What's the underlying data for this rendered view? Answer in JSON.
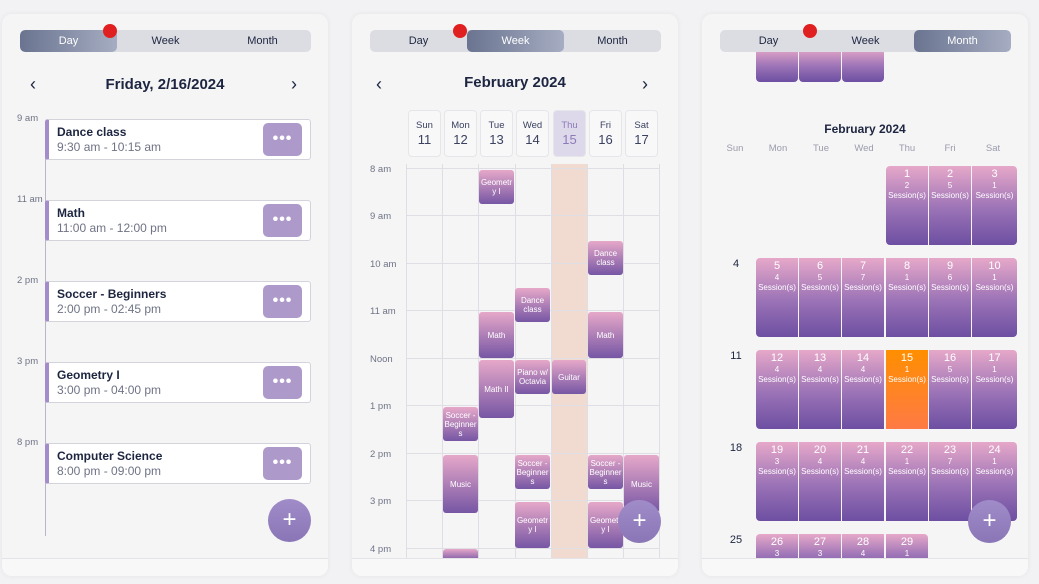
{
  "segments": [
    "Day",
    "Week",
    "Month"
  ],
  "day_view": {
    "title": "Friday, 2/16/2024",
    "prev": "‹",
    "next": "›",
    "time_labels": [
      "9 am",
      "11 am",
      "2 pm",
      "3 pm",
      "8 pm"
    ],
    "events": [
      {
        "title": "Dance class",
        "time": "9:30 am - 10:15 am"
      },
      {
        "title": "Math",
        "time": "11:00 am - 12:00 pm"
      },
      {
        "title": "Soccer - Beginners",
        "time": "2:00 pm - 02:45 pm"
      },
      {
        "title": "Geometry I",
        "time": "3:00 pm - 04:00 pm"
      },
      {
        "title": "Computer Science",
        "time": "8:00 pm - 09:00 pm"
      }
    ],
    "more": "•••",
    "add": "+"
  },
  "week_view": {
    "title": "February 2024",
    "prev": "‹",
    "next": "›",
    "days": [
      {
        "name": "Sun",
        "date": "11"
      },
      {
        "name": "Mon",
        "date": "12"
      },
      {
        "name": "Tue",
        "date": "13"
      },
      {
        "name": "Wed",
        "date": "14"
      },
      {
        "name": "Thu",
        "date": "15"
      },
      {
        "name": "Fri",
        "date": "16"
      },
      {
        "name": "Sat",
        "date": "17"
      }
    ],
    "hours": [
      "8 am",
      "9 am",
      "10 am",
      "11 am",
      "Noon",
      "1 pm",
      "2 pm",
      "3 pm",
      "4 pm"
    ],
    "blocks": [
      {
        "label": "Geometr y I"
      },
      {
        "label": "Dance class"
      },
      {
        "label": "Dance class"
      },
      {
        "label": "Math"
      },
      {
        "label": "Math"
      },
      {
        "label": "Piano w/ Octavia"
      },
      {
        "label": "Guitar"
      },
      {
        "label": "Math II"
      },
      {
        "label": "Soccer - Beginner s"
      },
      {
        "label": "Music"
      },
      {
        "label": "Soccer - Beginner s"
      },
      {
        "label": "Soccer - Beginner s"
      },
      {
        "label": "Music"
      },
      {
        "label": "Geometr y I"
      },
      {
        "label": "Geometr y I"
      }
    ],
    "add": "+"
  },
  "month_view": {
    "title": "February 2024",
    "dow": [
      "Sun",
      "Mon",
      "Tue",
      "Wed",
      "Thu",
      "Fri",
      "Sat"
    ],
    "weeks": [
      {
        "label": "",
        "days": [
          {
            "n": "1",
            "c": "2",
            "u": "Session(s)"
          },
          {
            "n": "2",
            "c": "5",
            "u": "Session(s)"
          },
          {
            "n": "3",
            "c": "1",
            "u": "Session(s)"
          }
        ]
      },
      {
        "label": "4",
        "days": [
          {
            "n": "5",
            "c": "4",
            "u": "Session(s)"
          },
          {
            "n": "6",
            "c": "5",
            "u": "Session(s)"
          },
          {
            "n": "7",
            "c": "7",
            "u": "Session(s)"
          },
          {
            "n": "8",
            "c": "1",
            "u": "Session(s)"
          },
          {
            "n": "9",
            "c": "6",
            "u": "Session(s)"
          },
          {
            "n": "10",
            "c": "1",
            "u": "Session(s)"
          }
        ]
      },
      {
        "label": "11",
        "days": [
          {
            "n": "12",
            "c": "4",
            "u": "Session(s)"
          },
          {
            "n": "13",
            "c": "4",
            "u": "Session(s)"
          },
          {
            "n": "14",
            "c": "4",
            "u": "Session(s)"
          },
          {
            "n": "15",
            "c": "1",
            "u": "Session(s)"
          },
          {
            "n": "16",
            "c": "5",
            "u": "Session(s)"
          },
          {
            "n": "17",
            "c": "1",
            "u": "Session(s)"
          }
        ]
      },
      {
        "label": "18",
        "days": [
          {
            "n": "19",
            "c": "3",
            "u": "Session(s)"
          },
          {
            "n": "20",
            "c": "4",
            "u": "Session(s)"
          },
          {
            "n": "21",
            "c": "4",
            "u": "Session(s)"
          },
          {
            "n": "22",
            "c": "1",
            "u": "Session(s)"
          },
          {
            "n": "23",
            "c": "7",
            "u": "Session(s)"
          },
          {
            "n": "24",
            "c": "1",
            "u": "Session(s)"
          }
        ]
      },
      {
        "label": "25",
        "days": [
          {
            "n": "26",
            "c": "3",
            "u": ""
          },
          {
            "n": "27",
            "c": "3",
            "u": ""
          },
          {
            "n": "28",
            "c": "4",
            "u": ""
          },
          {
            "n": "29",
            "c": "1",
            "u": ""
          }
        ]
      }
    ],
    "add": "+"
  }
}
